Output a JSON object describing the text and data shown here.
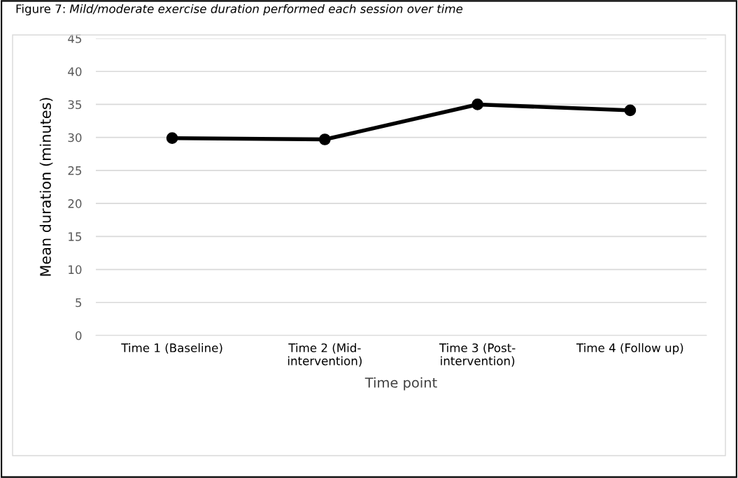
{
  "chart_data": {
    "type": "line",
    "title": "Figure 7: Mild/moderate exercise duration performed each session over time",
    "xlabel": "Time point",
    "ylabel": "Mean duration (minutes)",
    "categories": [
      "Time 1 (Baseline)",
      "Time 2 (Mid-\nintervention)",
      "Time 3 (Post-\nintervention)",
      "Time 4 (Follow up)"
    ],
    "series": [
      {
        "color": "#000000",
        "values": [
          29.9,
          29.7,
          35.0,
          34.1
        ]
      }
    ],
    "ylim": [
      0,
      45
    ],
    "yticks": [
      0,
      5,
      10,
      15,
      20,
      25,
      30,
      35,
      40,
      45
    ],
    "grid": "y",
    "legend": false,
    "marker": "circle",
    "line_style": "solid"
  }
}
